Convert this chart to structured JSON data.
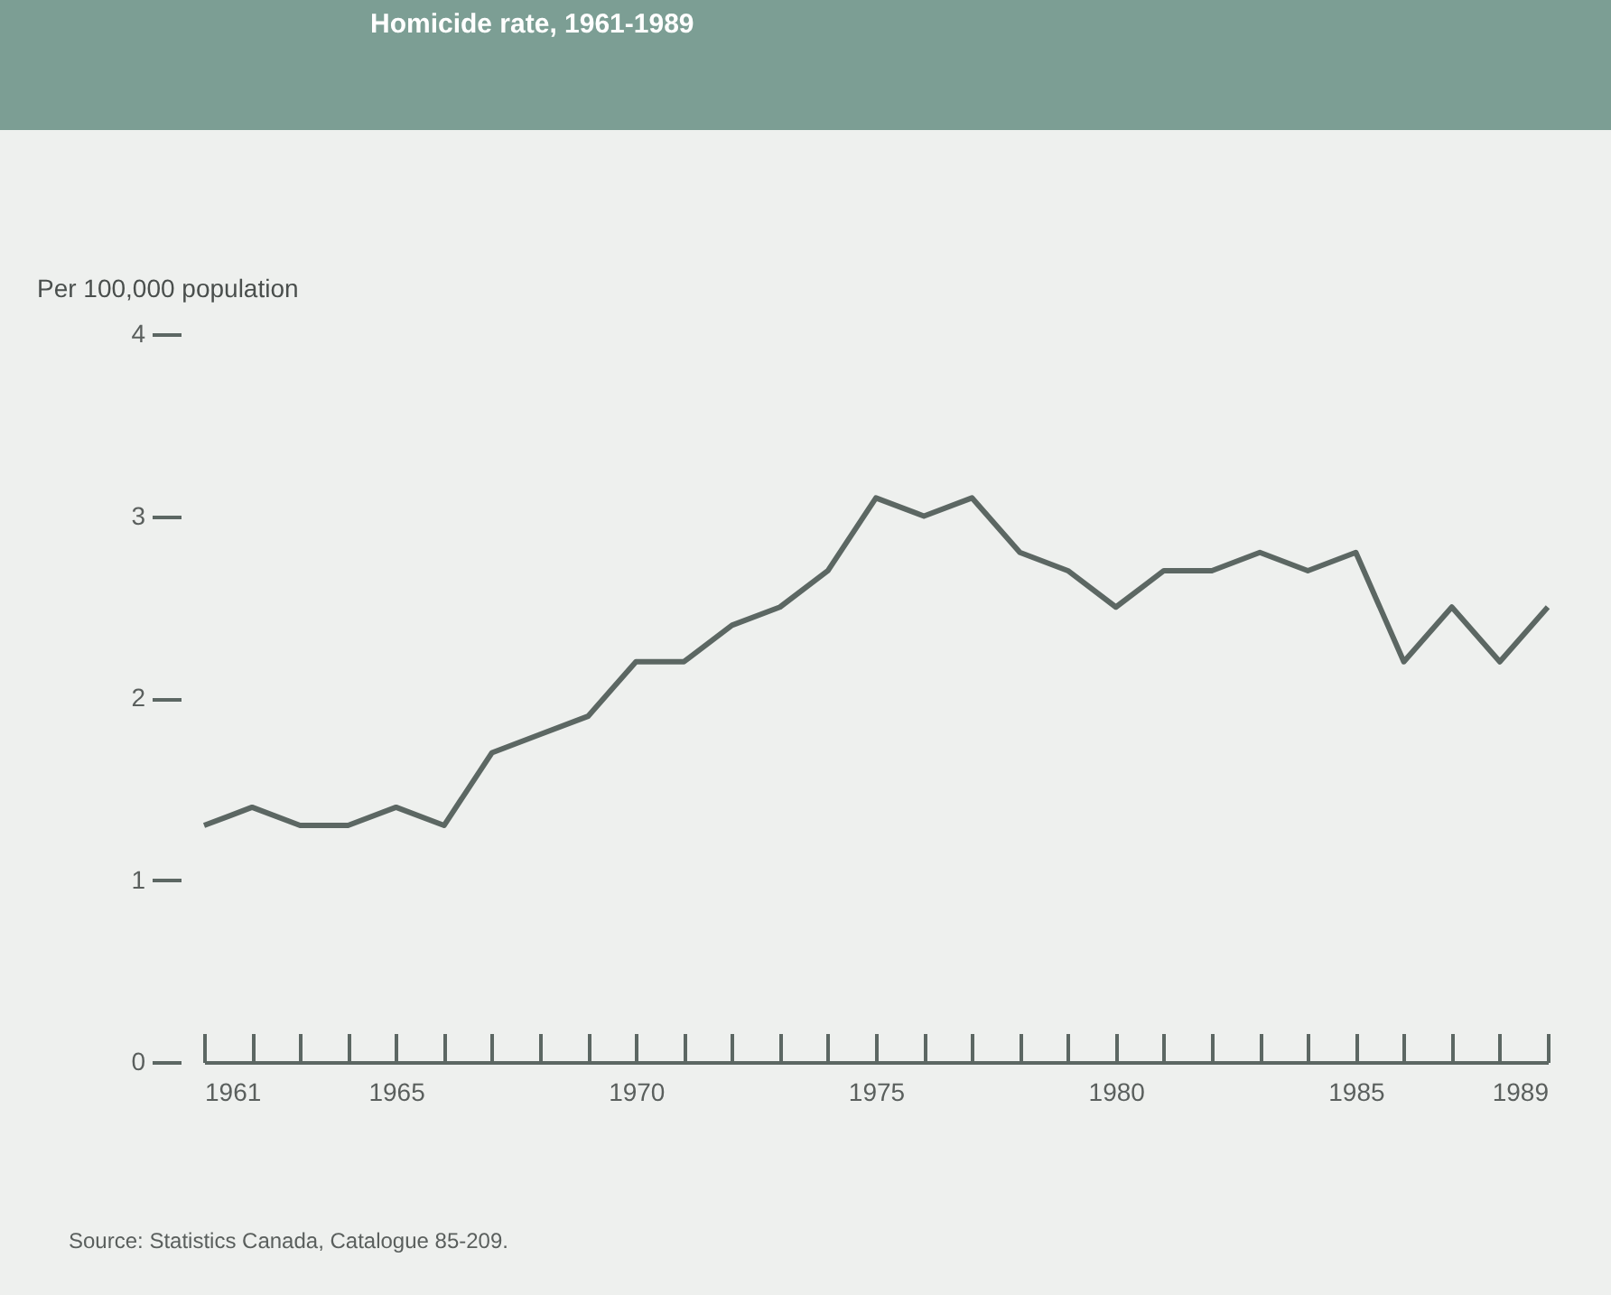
{
  "chart_data": {
    "type": "line",
    "title": "Homicide rate, 1961-1989",
    "ylabel": "Per 100,000 population",
    "x": [
      1961,
      1962,
      1963,
      1964,
      1965,
      1966,
      1967,
      1968,
      1969,
      1970,
      1971,
      1972,
      1973,
      1974,
      1975,
      1976,
      1977,
      1978,
      1979,
      1980,
      1981,
      1982,
      1983,
      1984,
      1985,
      1986,
      1987,
      1988,
      1989
    ],
    "series": [
      {
        "color": "#5c6763",
        "values": [
          1.3,
          1.4,
          1.3,
          1.3,
          1.4,
          1.3,
          1.7,
          1.8,
          1.9,
          2.2,
          2.2,
          2.4,
          2.5,
          2.7,
          3.1,
          3.0,
          3.1,
          2.8,
          2.7,
          2.5,
          2.7,
          2.7,
          2.8,
          2.7,
          2.8,
          2.2,
          2.5,
          2.2,
          2.5
        ]
      }
    ],
    "xlim": [
      1961,
      1989
    ],
    "xticks": [
      1961,
      {
        "value": 1962,
        "label": null
      },
      {
        "value": 1963,
        "label": null
      },
      {
        "value": 1964,
        "label": null
      },
      1965,
      {
        "value": 1966,
        "label": null
      },
      {
        "value": 1967,
        "label": null
      },
      {
        "value": 1968,
        "label": null
      },
      {
        "value": 1969,
        "label": null
      },
      1970,
      {
        "value": 1971,
        "label": null
      },
      {
        "value": 1972,
        "label": null
      },
      {
        "value": 1973,
        "label": null
      },
      {
        "value": 1974,
        "label": null
      },
      1975,
      {
        "value": 1976,
        "label": null
      },
      {
        "value": 1977,
        "label": null
      },
      {
        "value": 1978,
        "label": null
      },
      {
        "value": 1979,
        "label": null
      },
      1980,
      {
        "value": 1981,
        "label": null
      },
      {
        "value": 1982,
        "label": null
      },
      {
        "value": 1983,
        "label": null
      },
      {
        "value": 1984,
        "label": null
      },
      1985,
      {
        "value": 1986,
        "label": null
      },
      {
        "value": 1987,
        "label": null
      },
      {
        "value": 1988,
        "label": null
      },
      1989
    ],
    "ylim": [
      0,
      4
    ],
    "yticks": [
      0,
      1,
      2,
      3,
      4
    ],
    "grid": false,
    "legend": false,
    "marker": "none",
    "line_style": "solid",
    "annotations": [
      "Source: Statistics Canada, Catalogue 85-209."
    ]
  }
}
